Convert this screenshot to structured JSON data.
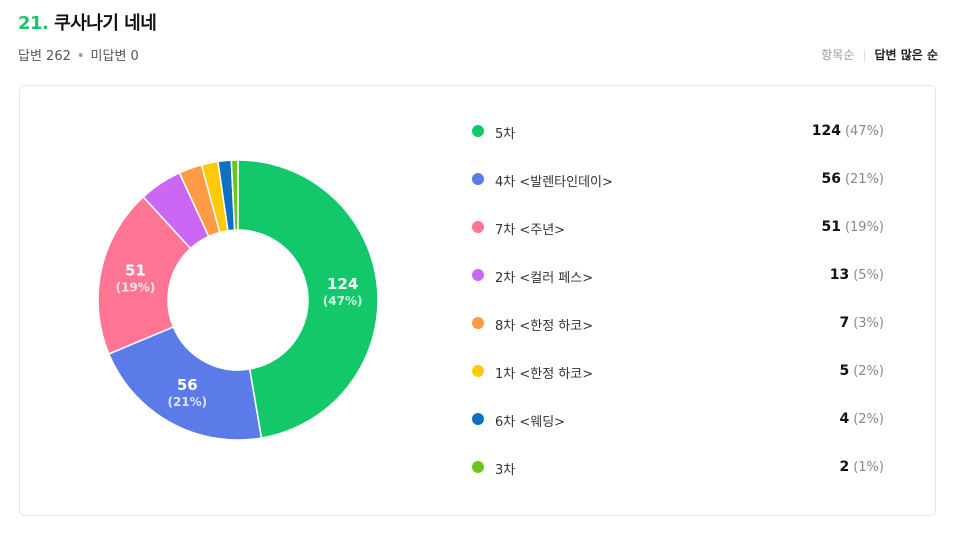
{
  "question": {
    "number": "21.",
    "title": "쿠사나기 네네"
  },
  "meta": {
    "answered": "답변 262",
    "separator": "•",
    "unanswered": "미답변 0"
  },
  "sort": {
    "option_item": "항목순",
    "separator": "|",
    "option_most": "답변 많은 순"
  },
  "chart_data": {
    "type": "pie",
    "donut": true,
    "total": 262,
    "categories": [
      "5차",
      "4차 <발렌타인데이>",
      "7차 <주년>",
      "2차 <컬러 페스>",
      "8차 <한정 하코>",
      "1차 <한정 하코>",
      "6차 <웨딩>",
      "3차"
    ],
    "values": [
      124,
      56,
      51,
      13,
      7,
      5,
      4,
      2
    ],
    "percent_labels": [
      "(47%)",
      "(21%)",
      "(19%)",
      "(5%)",
      "(3%)",
      "(2%)",
      "(2%)",
      "(1%)"
    ],
    "colors": [
      "#12c86a",
      "#5b7be9",
      "#ff7593",
      "#cc66f5",
      "#ff9a45",
      "#ffc80a",
      "#0e70c2",
      "#6cc61d"
    ],
    "slice_labels_shown": [
      0,
      1,
      2
    ],
    "legend_placement": "right"
  }
}
